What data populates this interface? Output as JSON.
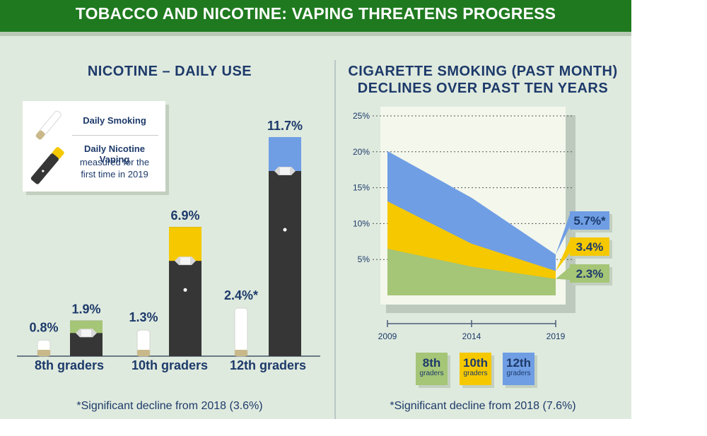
{
  "header": {
    "title": "TOBACCO AND NICOTINE: VAPING THREATENS PROGRESS"
  },
  "left_panel": {
    "title": "NICOTINE – DAILY USE",
    "legend": {
      "smoking": "Daily Smoking",
      "vaping": "Daily Nicotine Vaping",
      "vaping_note_1": "measured for the",
      "vaping_note_2": "first time in 2019"
    },
    "footnote": "*Significant decline from 2018 (3.6%)"
  },
  "right_panel": {
    "title_line1": "CIGARETTE SMOKING (PAST MONTH)",
    "title_line2": "DECLINES OVER PAST TEN YEARS",
    "footnote": "*Significant decline from 2018 (7.6%)",
    "badges": [
      {
        "grade": "8th",
        "sub": "graders",
        "color": "#a5c577"
      },
      {
        "grade": "10th",
        "sub": "graders",
        "color": "#f5c800"
      },
      {
        "grade": "12th",
        "sub": "graders",
        "color": "#6f9ee4"
      }
    ]
  },
  "colors": {
    "green": "#a5c577",
    "yellow": "#f5c800",
    "blue": "#6f9ee4",
    "device": "#363636",
    "navy": "#1d3a6a"
  },
  "chart_data": [
    {
      "type": "bar",
      "title": "NICOTINE – DAILY USE",
      "categories": [
        "8th graders",
        "10th graders",
        "12th graders"
      ],
      "series": [
        {
          "name": "Daily Smoking",
          "values": [
            0.8,
            1.3,
            2.4
          ],
          "labels": [
            "0.8%",
            "1.3%",
            "2.4%*"
          ]
        },
        {
          "name": "Daily Nicotine Vaping",
          "values": [
            1.9,
            6.9,
            11.7
          ],
          "labels": [
            "1.9%",
            "6.9%",
            "11.7%"
          ],
          "colors": [
            "#a5c577",
            "#f5c800",
            "#6f9ee4"
          ]
        }
      ],
      "ylim": [
        0,
        11.7
      ]
    },
    {
      "type": "area",
      "title": "CIGARETTE SMOKING (PAST MONTH) DECLINES OVER PAST TEN YEARS",
      "x": [
        2009,
        2014,
        2019
      ],
      "x_ticks": [
        "2009",
        "2014",
        "2019"
      ],
      "y_ticks": [
        "5%",
        "10%",
        "15%",
        "20%",
        "25%"
      ],
      "ylim": [
        0,
        25
      ],
      "grid": true,
      "series": [
        {
          "name": "8th graders",
          "values": [
            6.5,
            4.0,
            2.3
          ],
          "label": "2.3%",
          "color": "#a5c577"
        },
        {
          "name": "10th graders",
          "values": [
            13.1,
            7.2,
            3.4
          ],
          "label": "3.4%",
          "color": "#f5c800"
        },
        {
          "name": "12th graders",
          "values": [
            20.1,
            13.6,
            5.7
          ],
          "label": "5.7%*",
          "color": "#6f9ee4"
        }
      ]
    }
  ]
}
